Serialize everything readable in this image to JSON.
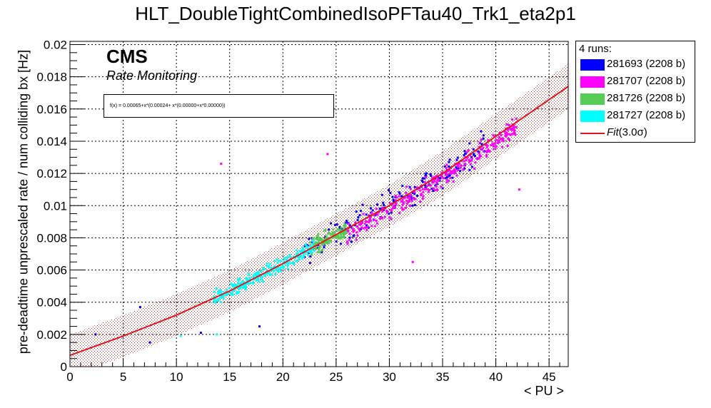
{
  "chart_data": {
    "type": "scatter",
    "title": "HLT_DoubleTightCombinedIsoPFTau40_Trk1_eta2p1",
    "xlabel": "< PU >",
    "ylabel": "pre-deadtime unprescaled rate / num colliding bx [Hz]",
    "xlim": [
      0,
      46.8
    ],
    "ylim": [
      0,
      0.0202
    ],
    "x_ticks": [
      "0",
      "5",
      "10",
      "15",
      "20",
      "25",
      "30",
      "35",
      "40",
      "45"
    ],
    "y_ticks": [
      "0",
      "0.002",
      "0.004",
      "0.006",
      "0.008",
      "0.01",
      "0.012",
      "0.014",
      "0.016",
      "0.018",
      "0.02"
    ],
    "grid": true,
    "legend_position": "outside-right",
    "cms_label": "CMS",
    "cms_sublabel": "Rate Monitoring",
    "fit_formula_text": "f(x) = 0.00065+x*(0.00024+ x*(0.00000+x*0.00000))",
    "fit_curve": {
      "x": [
        0,
        5,
        10,
        15,
        20,
        25,
        30,
        35,
        40,
        46.8
      ],
      "y": [
        0.0007,
        0.0019,
        0.0032,
        0.0047,
        0.0064,
        0.0082,
        0.01,
        0.012,
        0.0143,
        0.0174
      ],
      "band_halfwidth": [
        0.0013,
        0.0013,
        0.0013,
        0.0013,
        0.0013,
        0.0013,
        0.0013,
        0.0014,
        0.0014,
        0.0014
      ]
    },
    "series": [
      {
        "name": "281693 (2208 b)",
        "color": "#0000ff",
        "clusters": [
          {
            "x_range": [
              22,
              39
            ],
            "center": "fit",
            "spread": 0.0008,
            "count": 180
          }
        ],
        "outliers": [
          [
            2.4,
            0.002
          ],
          [
            6.6,
            0.0037
          ],
          [
            7.5,
            0.0015
          ],
          [
            17.8,
            0.0025
          ],
          [
            12.3,
            0.0021
          ],
          [
            26.0,
            0.009
          ]
        ]
      },
      {
        "name": "281707 (2208 b)",
        "color": "#ff00ff",
        "clusters": [
          {
            "x_range": [
              26,
              42
            ],
            "center": "fit-low",
            "spread": 0.0006,
            "count": 320
          }
        ],
        "outliers": [
          [
            14.2,
            0.0126
          ],
          [
            24.2,
            0.0132
          ],
          [
            42.2,
            0.011
          ],
          [
            32.2,
            0.0065
          ]
        ]
      },
      {
        "name": "281726 (2208 b)",
        "color": "#55cc55",
        "clusters": [
          {
            "x_range": [
              22.5,
              26
            ],
            "center": "fit",
            "spread": 0.0005,
            "count": 140
          }
        ],
        "outliers": []
      },
      {
        "name": "281727 (2208 b)",
        "color": "#00ffff",
        "clusters": [
          {
            "x_range": [
              13.5,
              23
            ],
            "center": "fit",
            "spread": 0.0004,
            "count": 260
          }
        ],
        "outliers": [
          [
            10.4,
            0.0019
          ],
          [
            13.8,
            0.002
          ]
        ]
      }
    ],
    "fit_legend": {
      "label_pre": "Fit",
      "label_sigma": "(3.0σ)",
      "color": "#e4141b"
    }
  },
  "legend": {
    "header": "4 runs:"
  }
}
